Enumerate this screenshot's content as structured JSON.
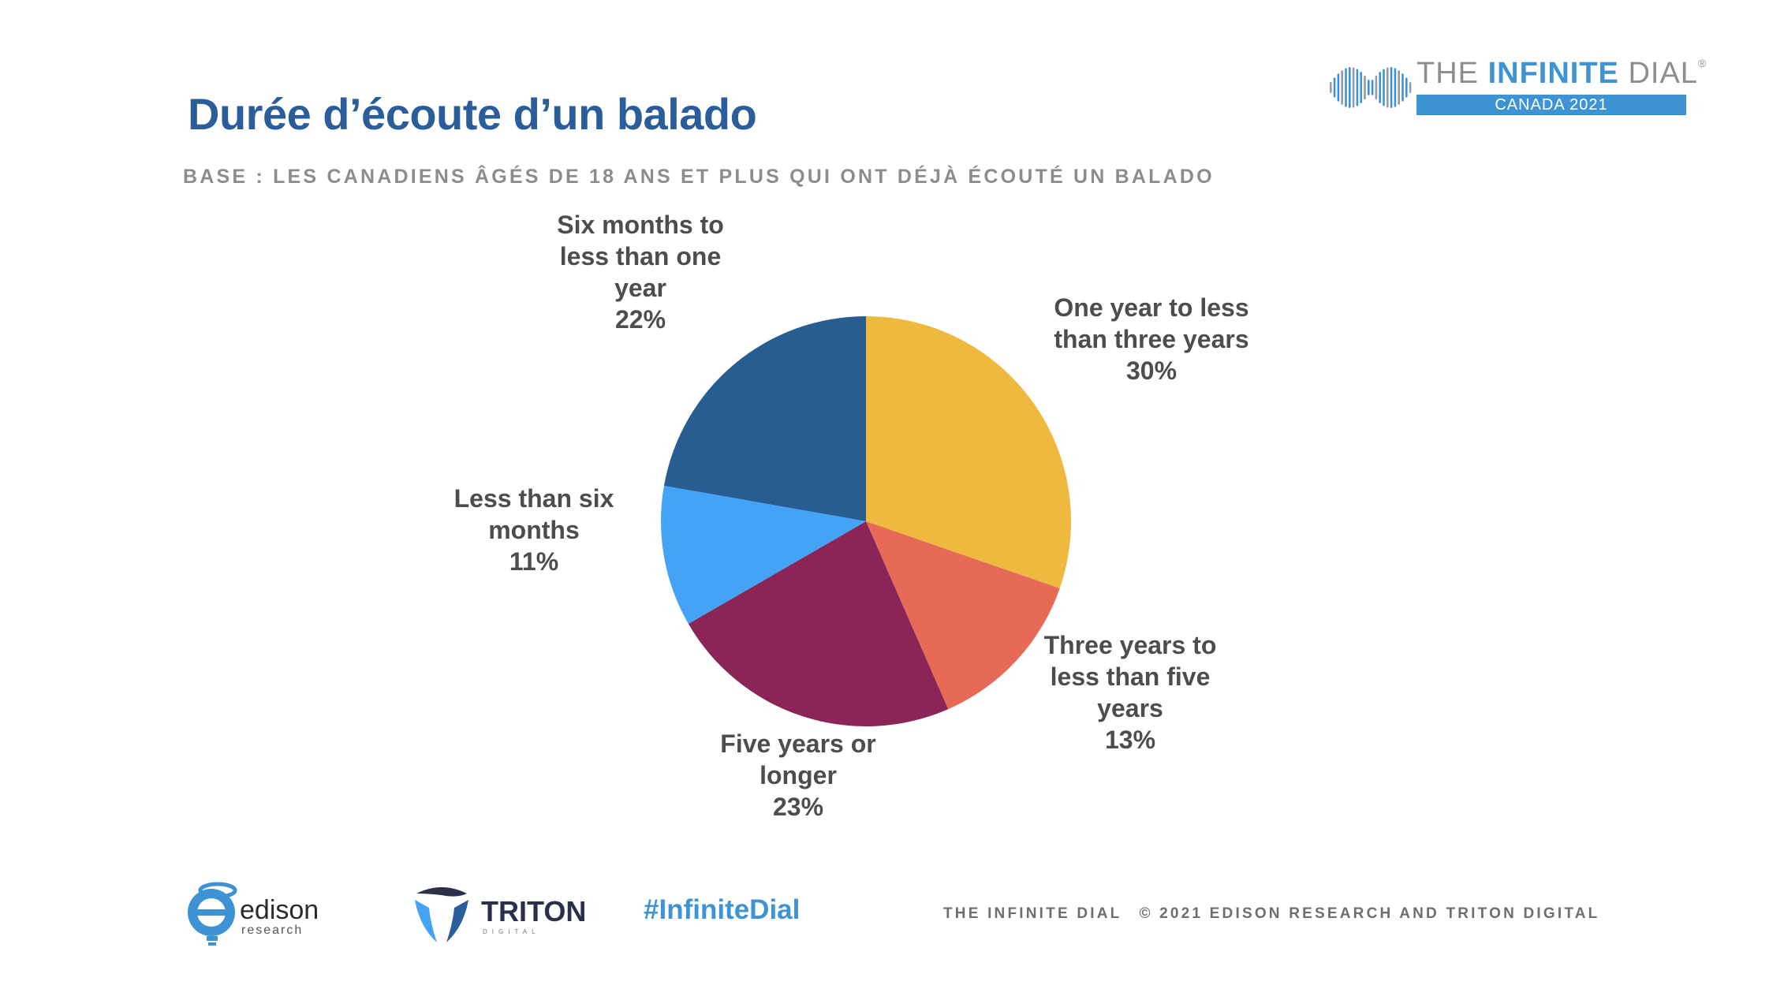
{
  "title": "Durée d’écoute d’un balado",
  "subtitle": "BASE : LES CANADIENS ÂGÉS DE 18 ANS ET PLUS QUI ONT DÉJÀ ÉCOUTÉ UN BALADO",
  "brand": {
    "name_left": "THE ",
    "name_mid": "INFINITE",
    "name_right": " DIAL",
    "registered": "®",
    "band": "CANADA 2021",
    "icon": "infinity-wave-icon"
  },
  "chart_data": {
    "type": "pie",
    "title": "Durée d’écoute d’un balado",
    "slices": [
      {
        "label_lines": [
          "One year to less",
          "than three years"
        ],
        "value_label": "30%",
        "value": 30,
        "color": "#efb940"
      },
      {
        "label_lines": [
          "Three years to",
          "less than five",
          "years"
        ],
        "value_label": "13%",
        "value": 13,
        "color": "#e66a55"
      },
      {
        "label_lines": [
          "Five years or",
          "longer"
        ],
        "value_label": "23%",
        "value": 23,
        "color": "#8b2557"
      },
      {
        "label_lines": [
          "Less than six",
          "months"
        ],
        "value_label": "11%",
        "value": 11,
        "color": "#44a3f5"
      },
      {
        "label_lines": [
          "Six months to",
          "less than one",
          "year"
        ],
        "value_label": "22%",
        "value": 22,
        "color": "#275d91"
      }
    ],
    "start": "12 o'clock",
    "direction": "clockwise",
    "labels": "outside"
  },
  "footer": {
    "edison_name": "edison",
    "edison_sub": "research",
    "triton_name": "TRITON",
    "triton_sub": "DIGITAL",
    "hashtag": "#InfiniteDial",
    "left_text": "THE INFINITE DIAL",
    "right_text": "© 2021 EDISON RESEARCH AND TRITON DIGITAL"
  }
}
